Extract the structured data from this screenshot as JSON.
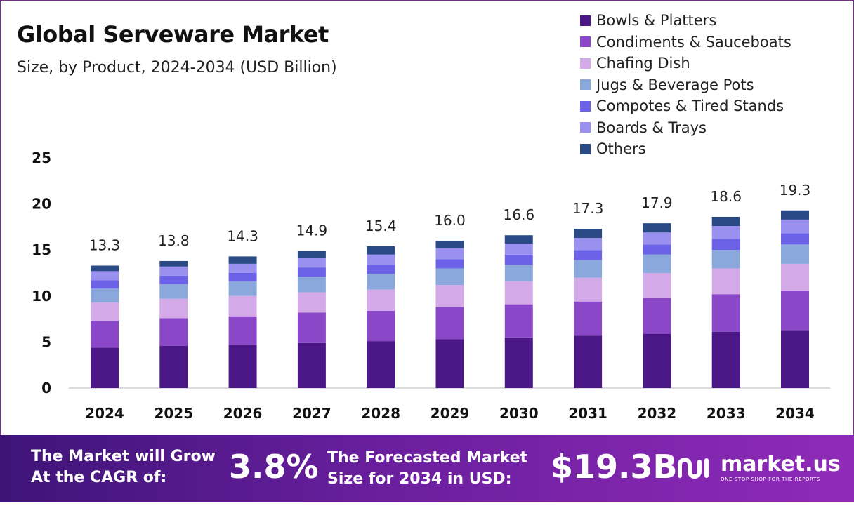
{
  "title": "Global Serveware Market",
  "subtitle": "Size, by Product, 2024-2034 (USD Billion)",
  "chart_data": {
    "type": "bar",
    "stacked": true,
    "categories": [
      "2024",
      "2025",
      "2026",
      "2027",
      "2028",
      "2029",
      "2030",
      "2031",
      "2032",
      "2033",
      "2034"
    ],
    "totals": [
      "13.3",
      "13.8",
      "14.3",
      "14.9",
      "15.4",
      "16.0",
      "16.6",
      "17.3",
      "17.9",
      "18.6",
      "19.3"
    ],
    "yticks": [
      "0",
      "5",
      "10",
      "15",
      "20",
      "25"
    ],
    "ylim": [
      0,
      25
    ],
    "series": [
      {
        "name": "Bowls & Platters",
        "color": "#4b1786",
        "values": [
          4.4,
          4.6,
          4.7,
          4.9,
          5.1,
          5.3,
          5.5,
          5.7,
          5.9,
          6.1,
          6.3
        ]
      },
      {
        "name": "Condiments & Sauceboats",
        "color": "#8a48c9",
        "values": [
          2.9,
          3.0,
          3.1,
          3.3,
          3.3,
          3.5,
          3.6,
          3.7,
          3.9,
          4.1,
          4.3
        ]
      },
      {
        "name": "Chafing Dish",
        "color": "#d4a9e8",
        "values": [
          2.0,
          2.1,
          2.2,
          2.2,
          2.3,
          2.4,
          2.5,
          2.6,
          2.7,
          2.8,
          2.9
        ]
      },
      {
        "name": "Jugs & Beverage Pots",
        "color": "#8aa8dc",
        "values": [
          1.5,
          1.6,
          1.6,
          1.7,
          1.7,
          1.8,
          1.8,
          1.9,
          2.0,
          2.0,
          2.1
        ]
      },
      {
        "name": "Compotes & Tired Stands",
        "color": "#6b62e8",
        "values": [
          0.9,
          0.9,
          0.9,
          1.0,
          1.0,
          1.0,
          1.1,
          1.1,
          1.1,
          1.2,
          1.2
        ]
      },
      {
        "name": "Boards & Trays",
        "color": "#9a90f0",
        "values": [
          1.0,
          1.0,
          1.0,
          1.0,
          1.1,
          1.2,
          1.2,
          1.3,
          1.3,
          1.4,
          1.5
        ]
      },
      {
        "name": "Others",
        "color": "#2a4a86",
        "values": [
          0.6,
          0.6,
          0.8,
          0.8,
          0.9,
          0.8,
          0.9,
          1.0,
          1.0,
          1.0,
          1.0
        ]
      }
    ],
    "xlabel": "",
    "ylabel": "",
    "legend": "top-right"
  },
  "banner": {
    "cagr_line1": "The Market will Grow",
    "cagr_line2": "At the CAGR of:",
    "cagr_value": "3.8%",
    "forecast_line1": "The Forecasted Market",
    "forecast_line2": "Size for 2034 in USD:",
    "forecast_value": "$19.3B",
    "brand_name": "market.us",
    "brand_tagline": "ONE STOP SHOP FOR THE REPORTS"
  }
}
